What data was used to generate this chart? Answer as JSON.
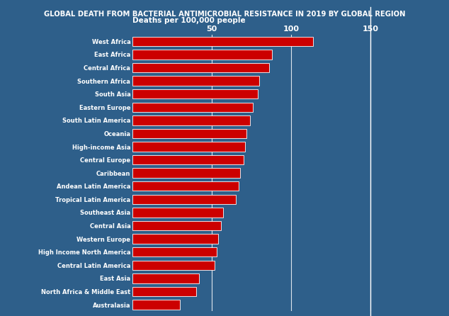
{
  "title": "GLOBAL DEATH FROM BACTERIAL ANTIMICROBIAL RESISTANCE IN 2019 BY GLOBAL REGION",
  "xlabel": "Deaths per 100,000 people",
  "regions": [
    "West Africa",
    "East Africa",
    "Central Africa",
    "Southern Africa",
    "South Asia",
    "Eastern Europe",
    "South Latin America",
    "Oceania",
    "High-income Asia",
    "Central Europe",
    "Caribbean",
    "Andean Latin America",
    "Tropical Latin America",
    "Southeast Asia",
    "Central Asia",
    "Western Europe",
    "High Income North America",
    "Central Latin America",
    "East Asia",
    "North Africa & Middle East",
    "Australasia"
  ],
  "values": [
    114,
    88,
    86,
    80,
    79,
    76,
    74,
    72,
    71,
    70,
    68,
    67,
    65,
    57,
    56,
    54,
    53,
    52,
    42,
    40,
    30
  ],
  "bar_color": "#cc0000",
  "bar_edge_color": "#ffffff",
  "background_color": "#2e5f8a",
  "title_bg_color": "#cc0000",
  "title_text_color": "#ffffff",
  "tick_label_color": "#ffffff",
  "axis_label_color": "#ffffff",
  "xlim": [
    0,
    160
  ],
  "xticks": [
    50,
    100,
    150
  ],
  "vline_color": "#ffffff"
}
